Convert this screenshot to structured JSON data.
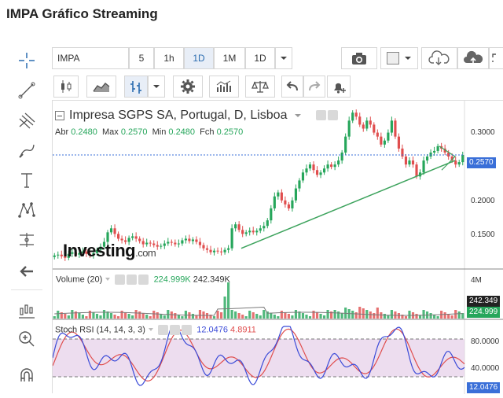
{
  "page": {
    "title": "IMPA Gráfico Streaming"
  },
  "toolbar": {
    "symbol": "IMPA",
    "intervals": [
      "5",
      "1h",
      "1D",
      "1M",
      "1D"
    ],
    "active_interval_index": 2
  },
  "legend": {
    "title": "Impresa SGPS SA, Portugal, D, Lisboa",
    "open_label": "Abr",
    "open_value": "0.2480",
    "high_label": "Max",
    "high_value": "0.2570",
    "low_label": "Min",
    "low_value": "0.2480",
    "close_label": "Fch",
    "close_value": "0.2570"
  },
  "brand": {
    "logo_text": "Investing",
    "logo_suffix": ".com"
  },
  "price_axis": {
    "labels": [
      "0.3000",
      "0.2000",
      "0.1500"
    ],
    "last_price": "0.2570"
  },
  "volume": {
    "label": "Volume (20)",
    "value1": "224.999K",
    "value2": "242.349K",
    "axis_label": "4M",
    "tag_upper": "242.349",
    "tag_lower": "224.999"
  },
  "stoch": {
    "label": "Stoch RSI (14, 14, 3, 3)",
    "k_value": "12.0476",
    "d_value": "4.8911",
    "axis_labels": [
      "80.0000",
      "40.0000"
    ],
    "tag": "12.0476"
  },
  "colors": {
    "up": "#26a65b",
    "down": "#e04e4e",
    "blue_line": "#3b4bd8",
    "red_line": "#e04e4e",
    "band": "#e5cfe8",
    "trend": "#3da35d",
    "tag_blue": "#3a6fd8"
  },
  "chart_data": {
    "type": "candlestick",
    "price_range": [
      0.115,
      0.325
    ],
    "closes": [
      0.131,
      0.132,
      0.13,
      0.128,
      0.133,
      0.135,
      0.132,
      0.134,
      0.136,
      0.133,
      0.131,
      0.134,
      0.138,
      0.142,
      0.148,
      0.16,
      0.165,
      0.158,
      0.152,
      0.15,
      0.148,
      0.153,
      0.155,
      0.152,
      0.149,
      0.145,
      0.147,
      0.146,
      0.144,
      0.142,
      0.143,
      0.146,
      0.148,
      0.147,
      0.145,
      0.146,
      0.15,
      0.152,
      0.149,
      0.151,
      0.148,
      0.144,
      0.14,
      0.138,
      0.135,
      0.137,
      0.136,
      0.135,
      0.138,
      0.14,
      0.165,
      0.17,
      0.163,
      0.158,
      0.16,
      0.162,
      0.16,
      0.162,
      0.165,
      0.168,
      0.175,
      0.19,
      0.205,
      0.21,
      0.2,
      0.195,
      0.19,
      0.2,
      0.215,
      0.225,
      0.235,
      0.24,
      0.245,
      0.238,
      0.232,
      0.235,
      0.24,
      0.245,
      0.242,
      0.245,
      0.25,
      0.26,
      0.28,
      0.3,
      0.31,
      0.305,
      0.295,
      0.29,
      0.3,
      0.295,
      0.285,
      0.28,
      0.27,
      0.275,
      0.285,
      0.3,
      0.28,
      0.265,
      0.255,
      0.245,
      0.25,
      0.245,
      0.23,
      0.235,
      0.25,
      0.255,
      0.26,
      0.262,
      0.268,
      0.265,
      0.26,
      0.255,
      0.25,
      0.245,
      0.248,
      0.257
    ],
    "volume_spike_index": 49
  }
}
